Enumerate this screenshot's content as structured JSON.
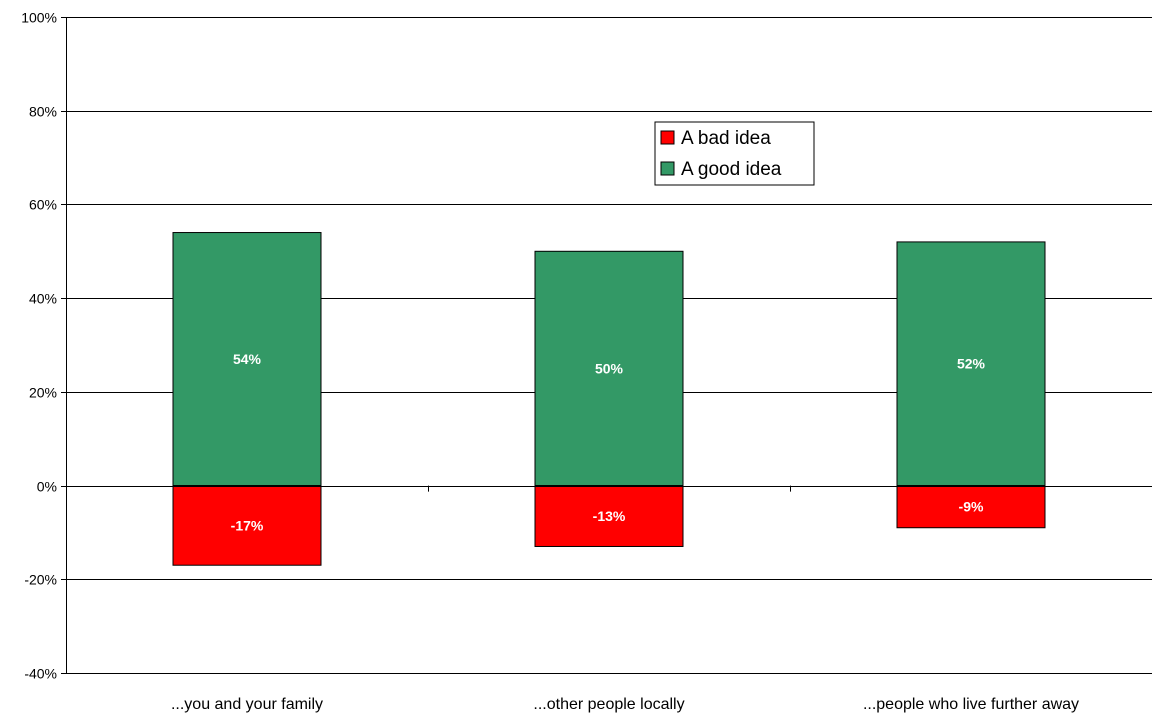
{
  "chart_data": {
    "type": "bar",
    "stacked": true,
    "categories": [
      "...you and your family",
      "...other people locally",
      "...people who live further away"
    ],
    "series": [
      {
        "name": "A good idea",
        "values": [
          54,
          50,
          52
        ],
        "labels": [
          "54%",
          "50%",
          "52%"
        ],
        "color": "#339966"
      },
      {
        "name": "A bad idea",
        "values": [
          -17,
          -13,
          -9
        ],
        "labels": [
          "-17%",
          "-13%",
          "-9%"
        ],
        "color": "#ff0000"
      }
    ],
    "ylim": [
      -40,
      100
    ],
    "yticks": [
      -40,
      -20,
      0,
      20,
      40,
      60,
      80,
      100
    ],
    "ytick_labels": [
      "-40%",
      "-20%",
      "0%",
      "20%",
      "40%",
      "60%",
      "80%",
      "100%"
    ],
    "grid": true,
    "legend": {
      "position": "top-center",
      "entries": [
        {
          "name": "A bad idea",
          "color": "#ff0000"
        },
        {
          "name": "A good idea",
          "color": "#339966"
        }
      ]
    },
    "title": "",
    "xlabel": "",
    "ylabel": ""
  }
}
